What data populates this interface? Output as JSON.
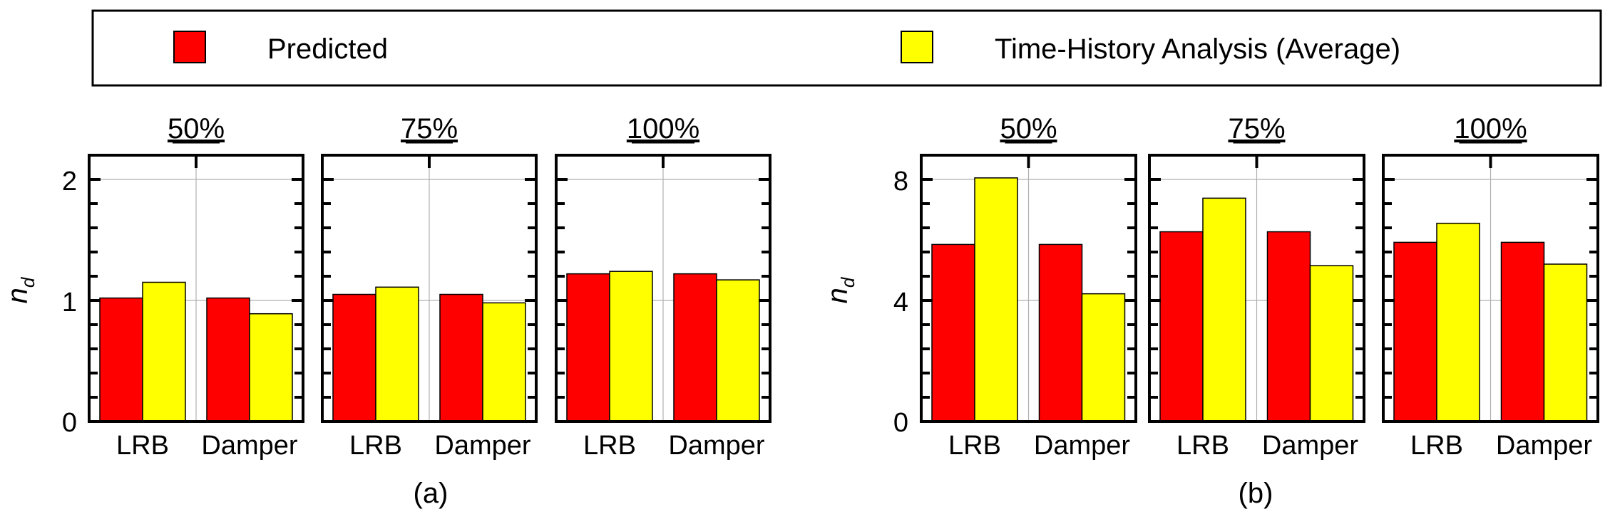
{
  "legend": {
    "items": [
      {
        "label": "Predicted",
        "color": "#ff0000"
      },
      {
        "label": "Time-History Analysis (Average)",
        "color": "#ffff00"
      }
    ]
  },
  "panels": [
    {
      "caption": "(a)",
      "ylabel_main": "n",
      "ylabel_sub": "d",
      "yticks": [
        "0",
        "1",
        "2"
      ]
    },
    {
      "caption": "(b)",
      "ylabel_main": "n",
      "ylabel_sub": "d",
      "yticks": [
        "0",
        "4",
        "8"
      ]
    }
  ],
  "chart_data": [
    {
      "type": "bar",
      "panel": "(a)",
      "title": "50%",
      "categories": [
        "LRB",
        "Damper"
      ],
      "ylim": [
        0,
        2.2
      ],
      "series": [
        {
          "name": "Predicted",
          "values": [
            1.02,
            1.02
          ]
        },
        {
          "name": "Time-History Analysis (Average)",
          "values": [
            1.15,
            0.89
          ]
        }
      ]
    },
    {
      "type": "bar",
      "panel": "(a)",
      "title": "75%",
      "categories": [
        "LRB",
        "Damper"
      ],
      "ylim": [
        0,
        2.2
      ],
      "series": [
        {
          "name": "Predicted",
          "values": [
            1.05,
            1.05
          ]
        },
        {
          "name": "Time-History Analysis (Average)",
          "values": [
            1.11,
            0.98
          ]
        }
      ]
    },
    {
      "type": "bar",
      "panel": "(a)",
      "title": "100%",
      "categories": [
        "LRB",
        "Damper"
      ],
      "ylim": [
        0,
        2.2
      ],
      "series": [
        {
          "name": "Predicted",
          "values": [
            1.22,
            1.22
          ]
        },
        {
          "name": "Time-History Analysis (Average)",
          "values": [
            1.24,
            1.17
          ]
        }
      ]
    },
    {
      "type": "bar",
      "panel": "(b)",
      "title": "50%",
      "categories": [
        "LRB",
        "Damper"
      ],
      "ylim": [
        0,
        8.8
      ],
      "series": [
        {
          "name": "Predicted",
          "values": [
            5.85,
            5.85
          ]
        },
        {
          "name": "Time-History Analysis (Average)",
          "values": [
            8.05,
            4.22
          ]
        }
      ]
    },
    {
      "type": "bar",
      "panel": "(b)",
      "title": "75%",
      "categories": [
        "LRB",
        "Damper"
      ],
      "ylim": [
        0,
        8.8
      ],
      "series": [
        {
          "name": "Predicted",
          "values": [
            6.27,
            6.27
          ]
        },
        {
          "name": "Time-History Analysis (Average)",
          "values": [
            7.38,
            5.15
          ]
        }
      ]
    },
    {
      "type": "bar",
      "panel": "(b)",
      "title": "100%",
      "categories": [
        "LRB",
        "Damper"
      ],
      "ylim": [
        0,
        8.8
      ],
      "series": [
        {
          "name": "Predicted",
          "values": [
            5.92,
            5.92
          ]
        },
        {
          "name": "Time-History Analysis (Average)",
          "values": [
            6.55,
            5.2
          ]
        }
      ]
    }
  ]
}
